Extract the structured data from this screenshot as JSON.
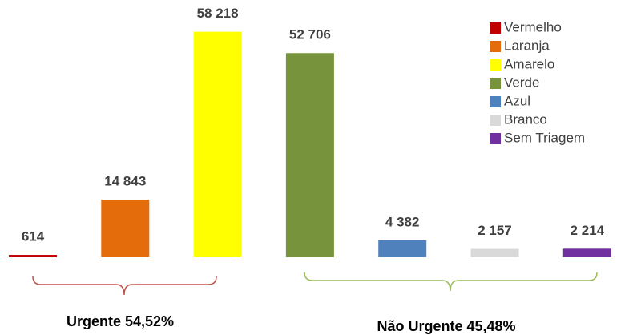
{
  "chart_data": {
    "type": "bar",
    "categories": [
      "Vermelho",
      "Laranja",
      "Amarelo",
      "Verde",
      "Azul",
      "Branco",
      "Sem Triagem"
    ],
    "values": [
      614,
      14843,
      58218,
      52706,
      4382,
      2157,
      2214
    ],
    "value_labels": [
      "614",
      "14 843",
      "58 218",
      "52 706",
      "4 382",
      "2 157",
      "2 214"
    ],
    "colors": [
      "#c00000",
      "#e46c0a",
      "#ffff00",
      "#77933c",
      "#4f81bd",
      "#d9d9d9",
      "#7030a0"
    ],
    "ylim": [
      0,
      60000
    ],
    "legend": "upper right",
    "annotations": [
      "Urgente 54,52%",
      "Não Urgente 45,48%"
    ]
  }
}
